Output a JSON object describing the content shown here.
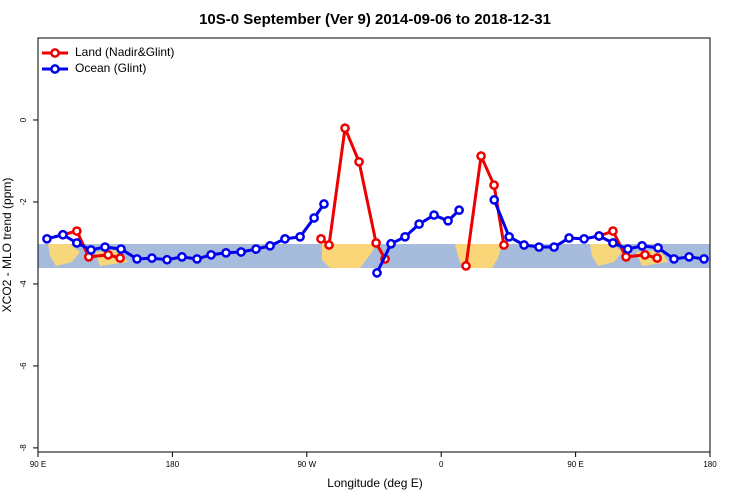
{
  "chart_data": {
    "type": "line",
    "title": "10S-0 September (Ver 9)   2014-09-06 to 2018-12-31",
    "xlabel": "Longitude (deg E)",
    "ylabel": "XCO2 - MLO trend (ppm)",
    "xlim": [
      90,
      540
    ],
    "ylim": [
      -8.1,
      2.0
    ],
    "xticks": [
      {
        "value": 90,
        "label": "90 E"
      },
      180,
      {
        "value": 270,
        "label": "90 W"
      },
      {
        "value": 360,
        "label": "0"
      },
      {
        "value": 450,
        "label": "90 E"
      },
      {
        "value": 540,
        "label": "180"
      }
    ],
    "yticks": [
      0,
      -2,
      -4,
      -6,
      -8
    ],
    "legend": "top-left",
    "series": [
      {
        "name": "Land (Nadir&Glint)",
        "color": "#ee0000",
        "x": [
          106.7,
          116,
          124,
          137,
          145,
          null,
          279.5,
          284.9,
          295.6,
          305,
          316.4,
          322.4,
          null,
          376.6,
          386.7,
          395.4,
          402,
          null,
          465.7,
          475,
          483.8,
          496.5,
          504.6
        ],
        "values": [
          -2.8,
          -2.71,
          -3.34,
          -3.29,
          -3.37,
          null,
          -2.9,
          -3.05,
          -0.2,
          -1.02,
          -3.0,
          -3.39,
          null,
          -3.56,
          -0.88,
          -1.59,
          -3.05,
          null,
          -2.83,
          -2.71,
          -3.34,
          -3.29,
          -3.37
        ]
      },
      {
        "name": "Ocean (Glint)",
        "color": "#0000ee",
        "x": [
          96,
          106.7,
          116,
          125.5,
          134.9,
          145.6,
          156.3,
          166.3,
          176.4,
          186.4,
          196.5,
          205.9,
          215.9,
          226,
          236,
          245.4,
          255.4,
          265.5,
          274.9,
          281.5,
          null,
          317,
          326.4,
          335.8,
          345.2,
          355.2,
          364.6,
          372,
          null,
          395.5,
          405.5,
          415.5,
          425.5,
          435.6,
          445.6,
          455.7,
          465.7,
          475,
          485,
          494.5,
          505.2,
          515.9,
          526,
          536
        ],
        "values": [
          -2.9,
          -2.8,
          -3.0,
          -3.17,
          -3.1,
          -3.15,
          -3.39,
          -3.37,
          -3.41,
          -3.34,
          -3.39,
          -3.29,
          -3.24,
          -3.22,
          -3.15,
          -3.07,
          -2.9,
          -2.85,
          -2.39,
          -2.05,
          null,
          -3.73,
          -3.02,
          -2.85,
          -2.54,
          -2.32,
          -2.46,
          -2.2,
          null,
          -1.95,
          -2.85,
          -3.05,
          -3.1,
          -3.1,
          -2.88,
          -2.9,
          -2.83,
          -3.0,
          -3.15,
          -3.07,
          -3.12,
          -3.39,
          -3.34,
          -3.39
        ]
      }
    ]
  }
}
